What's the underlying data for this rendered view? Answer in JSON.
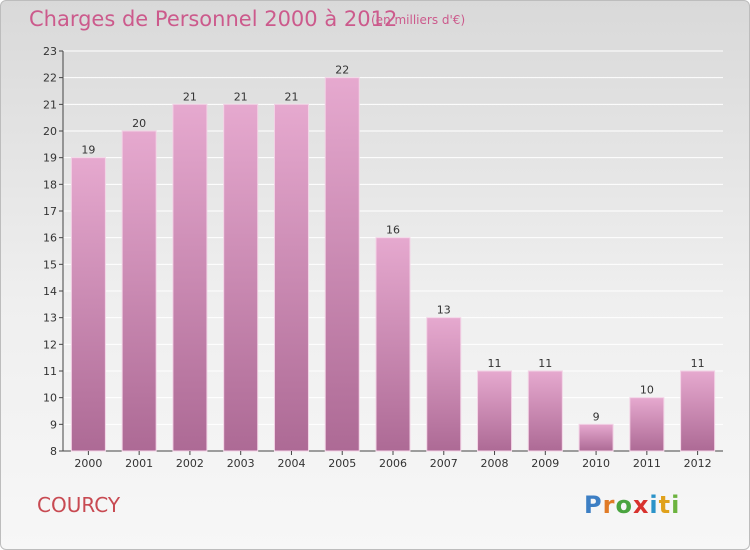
{
  "header": {
    "title": "Charges de Personnel 2000 à 2012",
    "subtitle": "(en milliers d'€)"
  },
  "footer": {
    "town": "COURCY",
    "logo_letters": [
      "P",
      "r",
      "o",
      "x",
      "i",
      "t",
      "i"
    ],
    "logo_colors": [
      "#3d7fc4",
      "#e07b27",
      "#4aa43f",
      "#d8322e",
      "#2b93c9",
      "#e0a11b",
      "#6cb33f"
    ]
  },
  "colors": {
    "bar_light": "#e6a9cf",
    "bar_dark": "#ad6a95",
    "title": "#cc5a8c",
    "town": "#c84a52",
    "grid": "#ffffff",
    "axis": "#444444"
  },
  "chart_data": {
    "type": "bar",
    "categories": [
      "2000",
      "2001",
      "2002",
      "2003",
      "2004",
      "2005",
      "2006",
      "2007",
      "2008",
      "2009",
      "2010",
      "2011",
      "2012"
    ],
    "values": [
      19,
      20,
      21,
      21,
      21,
      22,
      16,
      13,
      11,
      11,
      9,
      10,
      11
    ],
    "data_labels": [
      "19",
      "20",
      "21",
      "21",
      "21",
      "22",
      "16",
      "13",
      "11",
      "11",
      "9",
      "10",
      "11"
    ],
    "ylim": [
      8,
      23
    ],
    "yticks": [
      8,
      9,
      10,
      11,
      12,
      13,
      14,
      15,
      16,
      17,
      18,
      19,
      20,
      21,
      22,
      23
    ],
    "grid": true,
    "legend": "none"
  }
}
